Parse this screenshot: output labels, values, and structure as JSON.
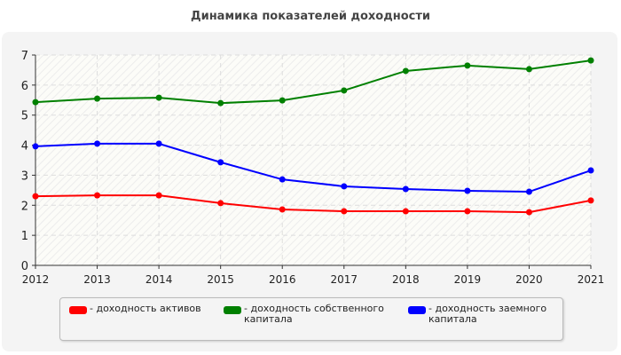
{
  "chart_data": {
    "type": "line",
    "title": "Динамика показателей доходности",
    "x": [
      2012,
      2013,
      2014,
      2015,
      2016,
      2017,
      2018,
      2019,
      2020,
      2021
    ],
    "ylim": [
      0,
      7
    ],
    "yticks": [
      0,
      1,
      2,
      3,
      4,
      5,
      6,
      7
    ],
    "grid": true,
    "legend_placement": "bottom",
    "series": [
      {
        "name": "- доходность активов",
        "color": "#ff0000",
        "values": [
          2.3,
          2.33,
          2.33,
          2.07,
          1.86,
          1.8,
          1.8,
          1.8,
          1.77,
          2.16
        ]
      },
      {
        "name": "- доходность собственного капитала",
        "color": "#008000",
        "values": [
          5.43,
          5.55,
          5.58,
          5.4,
          5.49,
          5.82,
          6.47,
          6.65,
          6.53,
          6.82
        ]
      },
      {
        "name": "- доходность заемного капитала",
        "color": "#0000ff",
        "values": [
          3.96,
          4.05,
          4.05,
          3.43,
          2.86,
          2.63,
          2.54,
          2.48,
          2.45,
          3.16
        ]
      }
    ]
  }
}
